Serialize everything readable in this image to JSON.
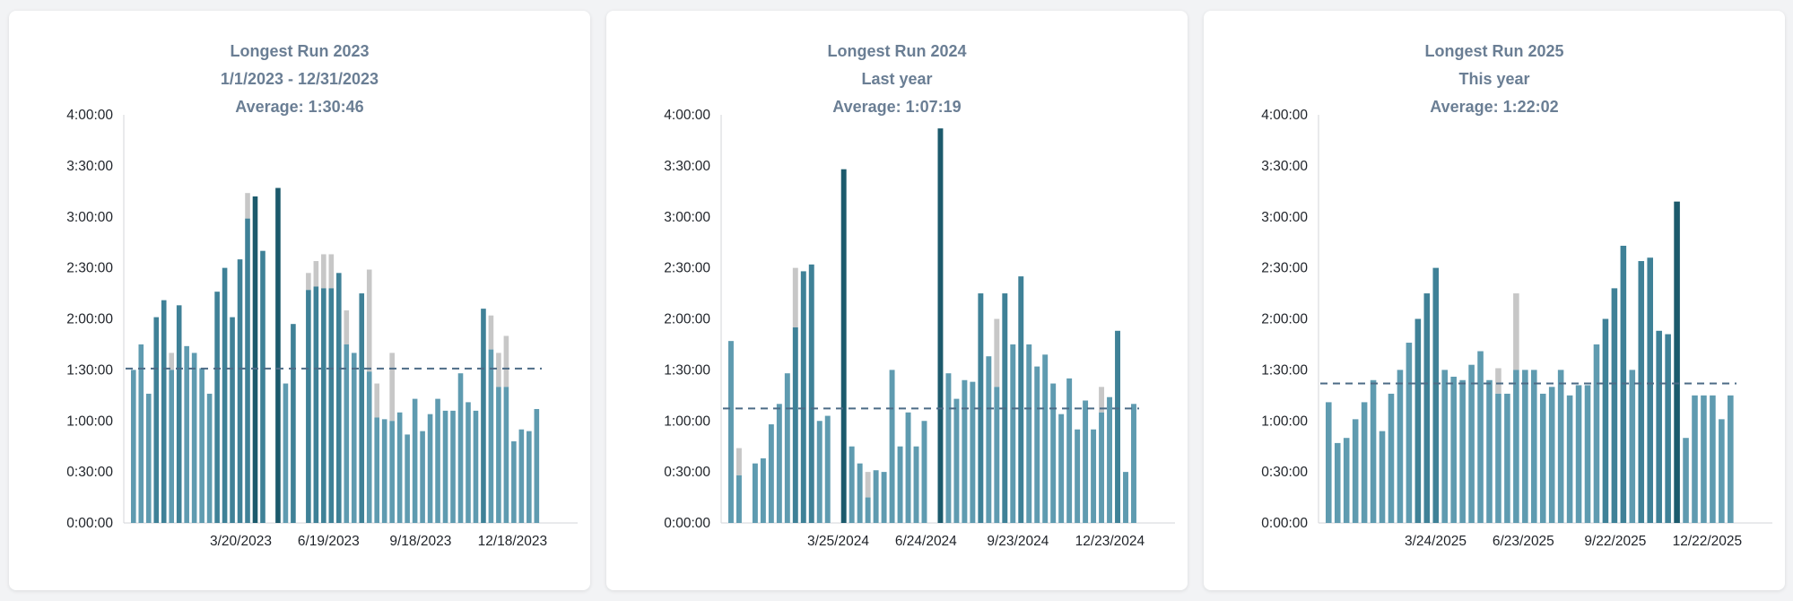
{
  "colors": {
    "bar_light": "#5f9bb0",
    "bar_mid": "#3f8197",
    "bar_dark": "#1c5a6c",
    "bar_gray": "#c7c7c7",
    "average_line": "#4c6b86",
    "axis": "#d3d6da"
  },
  "charts": [
    {
      "title": "Longest Run 2023",
      "subtitle": "1/1/2023 - 12/31/2023",
      "average_label": "Average: 1:30:46"
    },
    {
      "title": "Longest Run 2024",
      "subtitle": "Last year",
      "average_label": "Average: 1:07:19"
    },
    {
      "title": "Longest Run 2025",
      "subtitle": "This year",
      "average_label": "Average: 1:22:02"
    }
  ],
  "chart_data": [
    {
      "type": "bar",
      "title": "Longest Run 2023",
      "subtitle": "1/1/2023 - 12/31/2023",
      "ylim_minutes": [
        0,
        240
      ],
      "y_ticks": [
        "0:00:00",
        "0:30:00",
        "1:00:00",
        "1:30:00",
        "2:00:00",
        "2:30:00",
        "3:00:00",
        "3:30:00",
        "4:00:00"
      ],
      "x_ticks": [
        "3/20/2023",
        "6/19/2023",
        "9/18/2023",
        "12/18/2023"
      ],
      "average_minutes": 90.77,
      "values_minutes": [
        90,
        105,
        76,
        121,
        131,
        90,
        128,
        104,
        100,
        91,
        76,
        136,
        150,
        121,
        155,
        179,
        192,
        160,
        0,
        197,
        82,
        117,
        0,
        137,
        139,
        138,
        138,
        147,
        105,
        100,
        135,
        89,
        62,
        61,
        60,
        65,
        52,
        73,
        54,
        64,
        73,
        66,
        66,
        88,
        71,
        66,
        126,
        102,
        80,
        80,
        48,
        55,
        54,
        67
      ],
      "overlay_minutes": [
        0,
        0,
        0,
        0,
        0,
        10,
        0,
        0,
        0,
        0,
        0,
        0,
        0,
        0,
        0,
        15,
        0,
        0,
        0,
        0,
        0,
        0,
        0,
        10,
        15,
        20,
        20,
        0,
        20,
        0,
        0,
        60,
        20,
        0,
        40,
        0,
        0,
        0,
        0,
        0,
        0,
        0,
        0,
        0,
        0,
        0,
        0,
        20,
        20,
        30,
        0,
        0,
        0,
        0
      ]
    },
    {
      "type": "bar",
      "title": "Longest Run 2024",
      "subtitle": "Last year",
      "ylim_minutes": [
        0,
        240
      ],
      "y_ticks": [
        "0:00:00",
        "0:30:00",
        "1:00:00",
        "1:30:00",
        "2:00:00",
        "2:30:00",
        "3:00:00",
        "3:30:00",
        "4:00:00"
      ],
      "x_ticks": [
        "3/25/2024",
        "6/24/2024",
        "9/23/2024",
        "12/23/2024"
      ],
      "average_minutes": 67.32,
      "values_minutes": [
        107,
        28,
        0,
        35,
        38,
        58,
        70,
        88,
        115,
        148,
        152,
        60,
        63,
        0,
        208,
        45,
        35,
        15,
        31,
        30,
        90,
        45,
        65,
        45,
        60,
        0,
        232,
        88,
        73,
        84,
        83,
        135,
        98,
        80,
        135,
        105,
        145,
        105,
        92,
        99,
        82,
        64,
        85,
        55,
        72,
        55,
        65,
        74,
        113,
        30,
        70
      ],
      "overlay_minutes": [
        0,
        16,
        0,
        0,
        0,
        0,
        0,
        0,
        35,
        0,
        0,
        0,
        0,
        0,
        0,
        0,
        0,
        15,
        0,
        0,
        0,
        0,
        0,
        0,
        0,
        0,
        0,
        0,
        0,
        0,
        0,
        0,
        0,
        40,
        0,
        0,
        0,
        0,
        0,
        0,
        0,
        0,
        0,
        0,
        0,
        0,
        15,
        0,
        0,
        0,
        0
      ]
    },
    {
      "type": "bar",
      "title": "Longest Run 2025",
      "subtitle": "This year",
      "ylim_minutes": [
        0,
        240
      ],
      "y_ticks": [
        "0:00:00",
        "0:30:00",
        "1:00:00",
        "1:30:00",
        "2:00:00",
        "2:30:00",
        "3:00:00",
        "3:30:00",
        "4:00:00"
      ],
      "x_ticks": [
        "3/24/2025",
        "6/23/2025",
        "9/22/2025",
        "12/22/2025"
      ],
      "average_minutes": 82.03,
      "values_minutes": [
        71,
        47,
        50,
        61,
        71,
        84,
        54,
        76,
        90,
        106,
        120,
        135,
        150,
        90,
        86,
        84,
        93,
        101,
        84,
        76,
        76,
        90,
        90,
        90,
        76,
        80,
        90,
        75,
        81,
        81,
        105,
        120,
        138,
        163,
        90,
        154,
        156,
        113,
        111,
        189,
        50,
        75,
        75,
        75,
        61,
        75
      ],
      "overlay_minutes": [
        0,
        0,
        0,
        0,
        0,
        0,
        0,
        0,
        0,
        0,
        0,
        0,
        0,
        0,
        0,
        0,
        0,
        0,
        0,
        15,
        0,
        45,
        0,
        0,
        0,
        0,
        0,
        0,
        0,
        0,
        0,
        0,
        0,
        0,
        0,
        0,
        0,
        0,
        0,
        0,
        0,
        0,
        0,
        0,
        0,
        0
      ]
    }
  ]
}
